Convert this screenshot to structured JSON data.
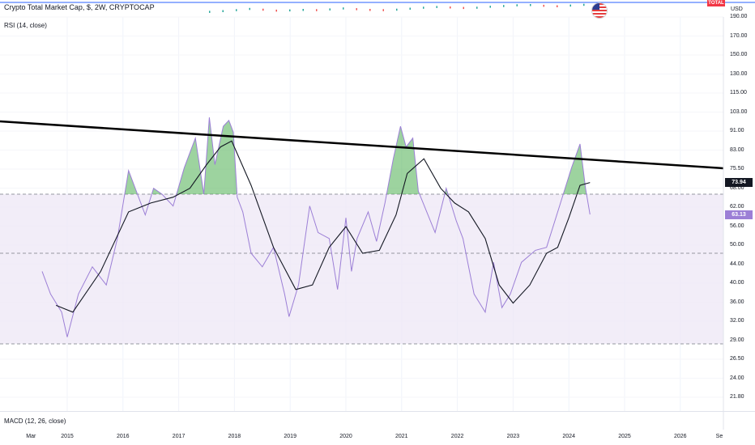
{
  "header": {
    "symbol_title": "Crypto Total Market Cap, $, 2W, CRYPTOCAP",
    "badge": "TOTAL",
    "currency": "USD"
  },
  "colors": {
    "rsi_line": "#9c7fd6",
    "rsi_ma": "#131722",
    "band_fill": "#ede7f6",
    "overbought_fill": "#4caf50",
    "trendline": "#000000",
    "ma_badge": "#131722",
    "rsi_badge": "#9c7fd6",
    "total_badge": "#f23645"
  },
  "indicators": {
    "rsi_title": "RSI (14, close)",
    "macd_title": "MACD (12, 26, close)"
  },
  "chart_data": {
    "type": "line",
    "title": "",
    "axis": {
      "y_ticks": [
        "190.00",
        "170.00",
        "150.00",
        "130.00",
        "115.00",
        "103.00",
        "91.00",
        "83.00",
        "75.50",
        "68.00",
        "62.00",
        "56.00",
        "50.00",
        "44.00",
        "40.00",
        "36.00",
        "32.00",
        "29.00",
        "26.50",
        "24.00",
        "21.80"
      ],
      "x_ticks": [
        "Mar",
        "2015",
        "2016",
        "2017",
        "2018",
        "2019",
        "2020",
        "2021",
        "2022",
        "2023",
        "2024",
        "2025",
        "2026",
        "Se"
      ]
    },
    "current_values": {
      "rsi_ma": "73.94",
      "rsi": "63.13"
    },
    "bands": {
      "upper": 70,
      "middle": 50,
      "lower": 30
    },
    "x": [
      2014.55,
      2014.7,
      2014.9,
      2015.0,
      2015.2,
      2015.45,
      2015.7,
      2015.9,
      2016.1,
      2016.4,
      2016.55,
      2016.7,
      2016.9,
      2017.1,
      2017.3,
      2017.45,
      2017.55,
      2017.65,
      2017.8,
      2017.9,
      2017.98,
      2018.05,
      2018.15,
      2018.3,
      2018.5,
      2018.7,
      2018.9,
      2018.98,
      2019.15,
      2019.35,
      2019.5,
      2019.7,
      2019.85,
      2020.0,
      2020.1,
      2020.2,
      2020.4,
      2020.55,
      2020.7,
      2020.85,
      2020.98,
      2021.08,
      2021.2,
      2021.3,
      2021.45,
      2021.6,
      2021.8,
      2021.98,
      2022.1,
      2022.3,
      2022.5,
      2022.65,
      2022.8,
      2022.95,
      2023.15,
      2023.4,
      2023.6,
      2023.85,
      2024.05,
      2024.2,
      2024.3,
      2024.38
    ],
    "rsi": [
      46.0,
      41.0,
      37.0,
      31.5,
      41.0,
      47.0,
      43.0,
      55.0,
      78.0,
      63.0,
      72.0,
      70.0,
      66.0,
      79.0,
      89.0,
      70.0,
      96.0,
      80.0,
      93.0,
      95.0,
      91.0,
      69.0,
      64.0,
      50.0,
      47.0,
      52.0,
      41.0,
      36.0,
      43.0,
      66.0,
      57.0,
      55.0,
      42.0,
      62.0,
      46.0,
      55.0,
      64.0,
      54.0,
      67.0,
      82.0,
      93.0,
      86.0,
      89.0,
      71.0,
      64.0,
      57.0,
      72.0,
      61.0,
      55.0,
      41.0,
      37.0,
      48.0,
      38.0,
      41.0,
      48.0,
      51.0,
      52.0,
      67.0,
      79.0,
      87.0,
      72.0,
      63.13
    ],
    "rsi_ma_x": [
      2014.8,
      2015.1,
      2015.6,
      2016.1,
      2016.5,
      2016.9,
      2017.2,
      2017.5,
      2017.75,
      2017.95,
      2018.3,
      2018.7,
      2019.1,
      2019.4,
      2019.7,
      2020.0,
      2020.3,
      2020.6,
      2020.9,
      2021.1,
      2021.4,
      2021.7,
      2021.95,
      2022.2,
      2022.5,
      2022.75,
      2023.0,
      2023.3,
      2023.6,
      2023.8,
      2024.0,
      2024.2,
      2024.38
    ],
    "rsi_ma": [
      38.5,
      37.0,
      46.0,
      64.0,
      67.0,
      69.0,
      72.0,
      80.0,
      86.0,
      88.0,
      73.0,
      52.0,
      42.0,
      43.0,
      52.0,
      59.0,
      50.0,
      51.0,
      63.0,
      77.0,
      82.0,
      72.0,
      67.0,
      64.0,
      55.0,
      43.0,
      39.0,
      43.0,
      50.0,
      52.0,
      62.0,
      73.0,
      73.94
    ]
  }
}
